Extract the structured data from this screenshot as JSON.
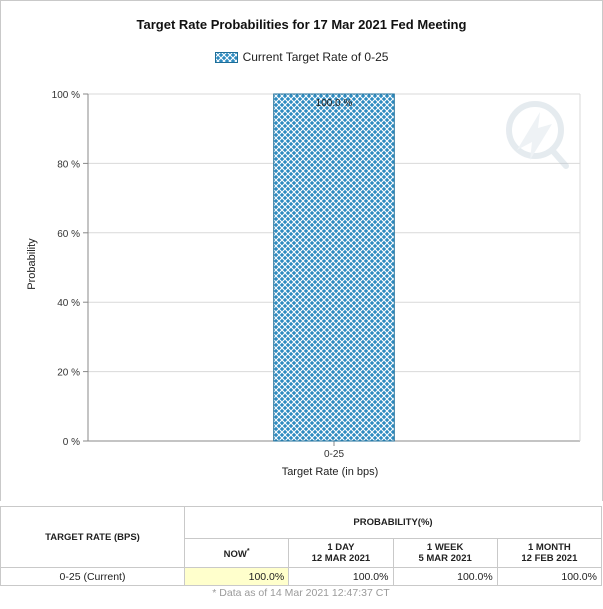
{
  "chart_data": {
    "type": "bar",
    "title": "Target Rate Probabilities for 17 Mar 2021 Fed Meeting",
    "legend": [
      "Current Target Rate of 0-25"
    ],
    "categories": [
      "0-25"
    ],
    "series": [
      {
        "name": "Current Target Rate of 0-25",
        "values": [
          100.0
        ]
      }
    ],
    "data_labels": [
      "100.0 %"
    ],
    "xlabel": "Target Rate (in bps)",
    "ylabel": "Probability",
    "ylim": [
      0,
      100
    ],
    "yticks": [
      "0 %",
      "20 %",
      "40 %",
      "60 %",
      "80 %",
      "100 %"
    ],
    "grid": true,
    "legend_position": "top-center",
    "colors": {
      "bar": "#2e8bc0",
      "hatch": "#ffffff",
      "bar_edge": "#1d6e99",
      "grid": "#d9d9d9"
    }
  },
  "table": {
    "rate_header": "TARGET RATE (BPS)",
    "probability_header": "PROBABILITY(%)",
    "columns": [
      {
        "line1": "NOW",
        "sup": "*",
        "line2": ""
      },
      {
        "line1": "1 DAY",
        "line2": "12 MAR 2021"
      },
      {
        "line1": "1 WEEK",
        "line2": "5 MAR 2021"
      },
      {
        "line1": "1 MONTH",
        "line2": "12 FEB 2021"
      }
    ],
    "rows": [
      {
        "rate": "0-25 (Current)",
        "now": "100.0%",
        "day": "100.0%",
        "week": "100.0%",
        "month": "100.0%"
      }
    ],
    "footnote": "* Data as of 14 Mar 2021 12:47:37 CT"
  }
}
